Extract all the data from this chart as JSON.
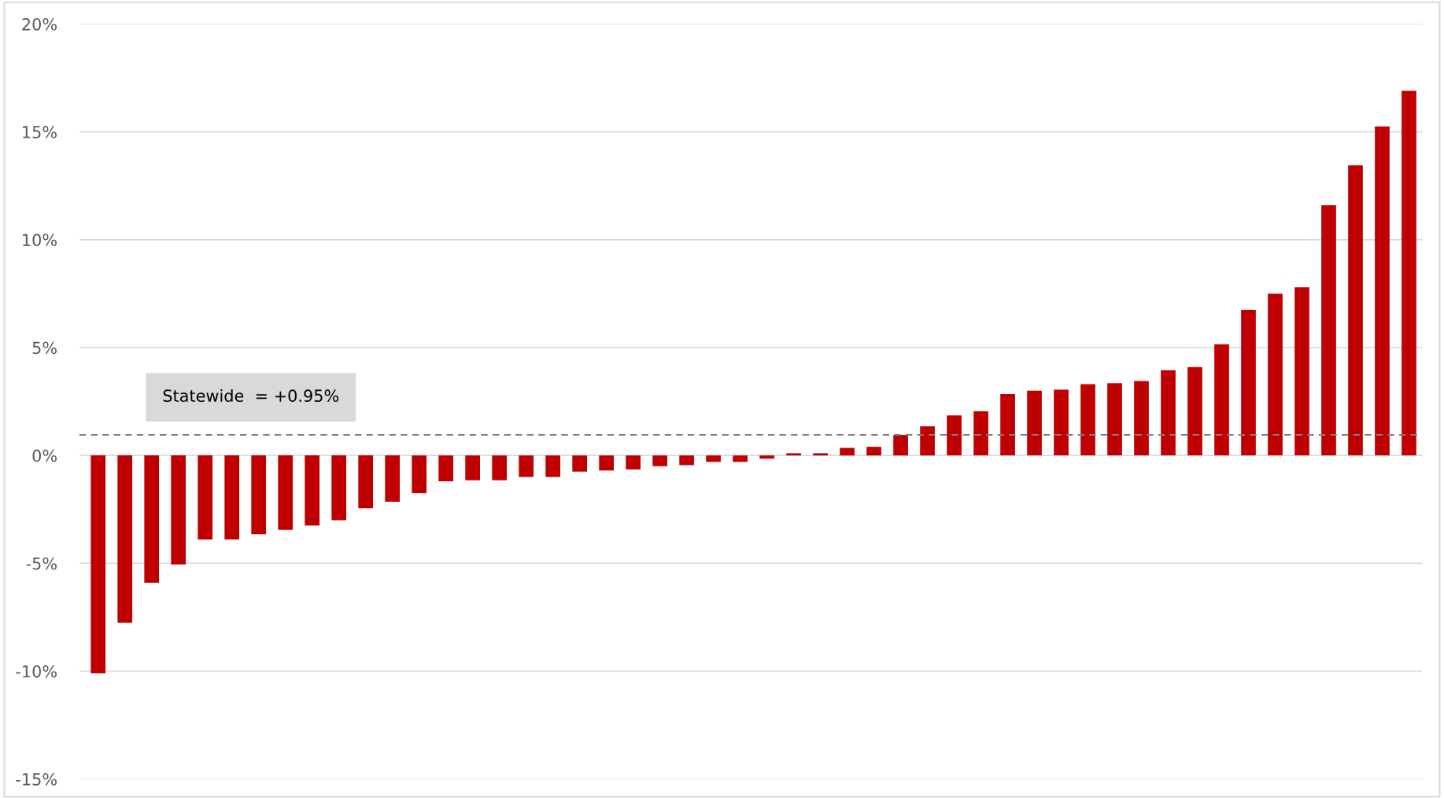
{
  "chart_data": {
    "type": "bar",
    "categories": [
      null,
      null,
      null,
      null,
      null,
      null,
      null,
      null,
      null,
      null,
      null,
      null,
      null,
      null,
      null,
      null,
      null,
      null,
      null,
      null,
      null,
      null,
      null,
      null,
      null,
      null,
      null,
      null,
      null,
      null,
      null,
      null,
      null,
      null,
      null,
      null,
      null,
      null,
      null,
      null,
      null,
      null,
      null,
      null,
      null,
      null,
      null,
      null,
      null,
      null
    ],
    "values": [
      -10.1,
      -7.75,
      -5.9,
      -5.05,
      -3.9,
      -3.9,
      -3.65,
      -3.45,
      -3.25,
      -3.0,
      -2.45,
      -2.15,
      -1.75,
      -1.2,
      -1.15,
      -1.15,
      -1.0,
      -1.0,
      -0.75,
      -0.7,
      -0.65,
      -0.5,
      -0.45,
      -0.3,
      -0.3,
      -0.15,
      0.1,
      0.1,
      0.35,
      0.4,
      0.95,
      1.35,
      1.85,
      2.05,
      2.85,
      3.0,
      3.05,
      3.3,
      3.35,
      3.45,
      3.95,
      4.1,
      5.15,
      6.75,
      7.5,
      7.8,
      11.6,
      13.45,
      15.25,
      16.9
    ],
    "color": "#c00000",
    "ylim": [
      -15,
      20
    ],
    "yticks": [
      {
        "value": -15,
        "label": "-15%"
      },
      {
        "value": -10,
        "label": "-10%"
      },
      {
        "value": -5,
        "label": "-5%"
      },
      {
        "value": 0,
        "label": "0%"
      },
      {
        "value": 5,
        "label": "5%"
      },
      {
        "value": 10,
        "label": "10%"
      },
      {
        "value": 15,
        "label": "15%"
      },
      {
        "value": 20,
        "label": "20%"
      }
    ],
    "grid": "y",
    "ref_lines": [
      {
        "axis": "y",
        "value": 0.95,
        "label": "Statewide  = +0.95%",
        "color": "#808080",
        "line_style": "dashed"
      }
    ]
  }
}
